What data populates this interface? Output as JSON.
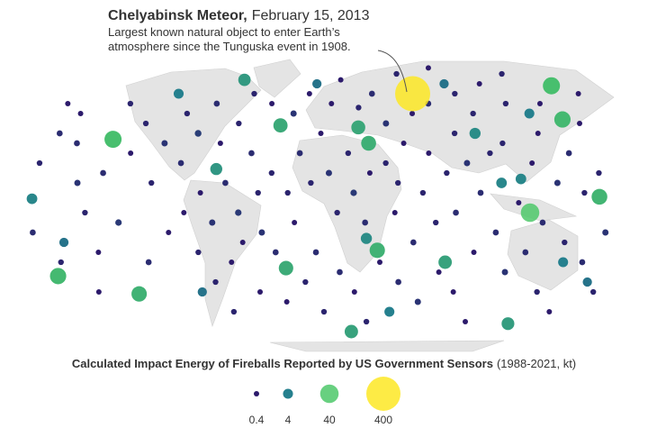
{
  "annotation": {
    "title": "Chelyabinsk Meteor,",
    "date": "February 15, 2013",
    "lines": [
      "Largest known natural object to enter Earth’s",
      "atmosphere since the Tunguska event in 1908."
    ]
  },
  "map": {
    "type": "bubble-map",
    "colors": [
      "#2c1a6b",
      "#25808e",
      "#4dc86a",
      "#fde725"
    ],
    "points": [
      [
        61,
        55,
        440
      ],
      [
        -133,
        32,
        30
      ],
      [
        -170,
        -37,
        25
      ],
      [
        -122,
        -46,
        20
      ],
      [
        -28,
        39,
        15
      ],
      [
        22,
        38,
        14
      ],
      [
        28,
        30,
        18
      ],
      [
        -24,
        -33,
        16
      ],
      [
        33,
        -24,
        20
      ],
      [
        76,
        -30,
        12
      ],
      [
        125,
        -5,
        40
      ],
      [
        160,
        59,
        30
      ],
      [
        155,
        42,
        25
      ],
      [
        167,
        3,
        22
      ],
      [
        20,
        -65,
        12
      ],
      [
        131,
        -61,
        10
      ],
      [
        -66,
        17,
        8
      ],
      [
        -57,
        62,
        9
      ],
      [
        26,
        -18,
        6
      ],
      [
        96,
        35,
        6
      ],
      [
        -177,
        2,
        5
      ],
      [
        -100,
        55,
        4
      ],
      [
        -160,
        -20,
        3
      ],
      [
        150,
        -30,
        4
      ],
      [
        120,
        12,
        5
      ],
      [
        170,
        -40,
        3
      ],
      [
        45,
        -55,
        4
      ],
      [
        -5,
        60,
        3
      ],
      [
        85,
        60,
        3
      ],
      [
        -80,
        -45,
        3
      ],
      [
        108,
        10,
        5
      ],
      [
        135,
        45,
        4
      ],
      [
        -175,
        20,
        0.5
      ],
      [
        -168,
        35,
        0.6
      ],
      [
        -160,
        45,
        0.4
      ],
      [
        -150,
        10,
        0.7
      ],
      [
        -145,
        -5,
        0.5
      ],
      [
        -140,
        -25,
        0.4
      ],
      [
        -135,
        15,
        0.6
      ],
      [
        -130,
        50,
        0.5
      ],
      [
        -125,
        -10,
        0.8
      ],
      [
        -120,
        25,
        0.4
      ],
      [
        -115,
        40,
        0.5
      ],
      [
        -110,
        -30,
        0.6
      ],
      [
        -105,
        10,
        0.5
      ],
      [
        -100,
        30,
        0.7
      ],
      [
        -95,
        -15,
        0.4
      ],
      [
        -90,
        45,
        0.5
      ],
      [
        -88,
        20,
        0.6
      ],
      [
        -85,
        -5,
        0.4
      ],
      [
        -80,
        35,
        0.9
      ],
      [
        -78,
        -25,
        0.5
      ],
      [
        -75,
        5,
        0.4
      ],
      [
        -72,
        50,
        0.6
      ],
      [
        -70,
        -40,
        0.5
      ],
      [
        -68,
        -10,
        0.7
      ],
      [
        -65,
        30,
        0.4
      ],
      [
        -62,
        -55,
        0.5
      ],
      [
        -60,
        10,
        0.6
      ],
      [
        -58,
        -30,
        0.4
      ],
      [
        -55,
        40,
        0.5
      ],
      [
        -52,
        -5,
        0.8
      ],
      [
        -50,
        -20,
        0.4
      ],
      [
        -48,
        55,
        0.5
      ],
      [
        -45,
        25,
        0.6
      ],
      [
        -42,
        -45,
        0.4
      ],
      [
        -40,
        5,
        0.5
      ],
      [
        -38,
        -15,
        0.7
      ],
      [
        -35,
        50,
        0.4
      ],
      [
        -32,
        15,
        0.5
      ],
      [
        -30,
        -25,
        0.6
      ],
      [
        -25,
        -50,
        0.4
      ],
      [
        -22,
        5,
        0.5
      ],
      [
        -20,
        45,
        0.7
      ],
      [
        -18,
        -10,
        0.4
      ],
      [
        -15,
        25,
        0.6
      ],
      [
        -12,
        -40,
        0.5
      ],
      [
        -10,
        55,
        0.4
      ],
      [
        -8,
        10,
        0.5
      ],
      [
        -5,
        -25,
        0.6
      ],
      [
        -2,
        35,
        0.4
      ],
      [
        0,
        -55,
        0.5
      ],
      [
        3,
        15,
        0.7
      ],
      [
        5,
        50,
        0.4
      ],
      [
        8,
        -5,
        0.5
      ],
      [
        10,
        -35,
        0.6
      ],
      [
        12,
        62,
        0.4
      ],
      [
        15,
        25,
        0.5
      ],
      [
        18,
        5,
        0.8
      ],
      [
        20,
        -45,
        0.4
      ],
      [
        23,
        48,
        0.5
      ],
      [
        25,
        -10,
        0.6
      ],
      [
        28,
        15,
        0.4
      ],
      [
        30,
        -60,
        0.5
      ],
      [
        33,
        55,
        0.6
      ],
      [
        35,
        -30,
        0.4
      ],
      [
        38,
        20,
        0.5
      ],
      [
        40,
        40,
        0.7
      ],
      [
        43,
        -5,
        0.4
      ],
      [
        45,
        10,
        0.5
      ],
      [
        48,
        -40,
        0.6
      ],
      [
        50,
        30,
        0.4
      ],
      [
        53,
        65,
        0.5
      ],
      [
        55,
        -20,
        0.6
      ],
      [
        58,
        45,
        0.4
      ],
      [
        60,
        5,
        0.5
      ],
      [
        63,
        -50,
        0.7
      ],
      [
        65,
        25,
        0.4
      ],
      [
        68,
        -10,
        0.5
      ],
      [
        70,
        50,
        0.6
      ],
      [
        73,
        -35,
        0.4
      ],
      [
        75,
        15,
        0.5
      ],
      [
        78,
        68,
        0.4
      ],
      [
        80,
        -5,
        0.6
      ],
      [
        83,
        35,
        0.5
      ],
      [
        85,
        -45,
        0.4
      ],
      [
        88,
        20,
        0.7
      ],
      [
        90,
        55,
        0.5
      ],
      [
        93,
        -25,
        0.4
      ],
      [
        95,
        5,
        0.6
      ],
      [
        98,
        45,
        0.5
      ],
      [
        100,
        -60,
        0.4
      ],
      [
        103,
        25,
        0.5
      ],
      [
        105,
        -15,
        0.6
      ],
      [
        110,
        60,
        0.4
      ],
      [
        112,
        30,
        0.5
      ],
      [
        115,
        -35,
        0.7
      ],
      [
        118,
        0,
        0.4
      ],
      [
        122,
        50,
        0.5
      ],
      [
        125,
        -25,
        0.6
      ],
      [
        128,
        20,
        0.4
      ],
      [
        130,
        65,
        0.5
      ],
      [
        133,
        -10,
        0.6
      ],
      [
        136,
        35,
        0.4
      ],
      [
        140,
        -45,
        0.5
      ],
      [
        142,
        10,
        0.7
      ],
      [
        145,
        50,
        0.4
      ],
      [
        148,
        -20,
        0.5
      ],
      [
        152,
        25,
        0.6
      ],
      [
        155,
        -55,
        0.4
      ],
      [
        158,
        5,
        0.5
      ],
      [
        162,
        -30,
        0.6
      ],
      [
        165,
        40,
        0.4
      ],
      [
        168,
        15,
        0.5
      ],
      [
        172,
        -15,
        0.7
      ],
      [
        175,
        55,
        0.4
      ],
      [
        177,
        -45,
        0.5
      ],
      [
        -178,
        -15,
        0.6
      ],
      [
        -172,
        50,
        0.4
      ],
      [
        -165,
        -30,
        0.5
      ],
      [
        -155,
        30,
        0.6
      ],
      [
        -148,
        -45,
        0.4
      ]
    ]
  },
  "legend": {
    "title": "Calculated Impact Energy of Fireballs Reported by US Government Sensors",
    "subtitle": "(1988-2021, kt)",
    "values": [
      0.4,
      4,
      40,
      400
    ]
  }
}
